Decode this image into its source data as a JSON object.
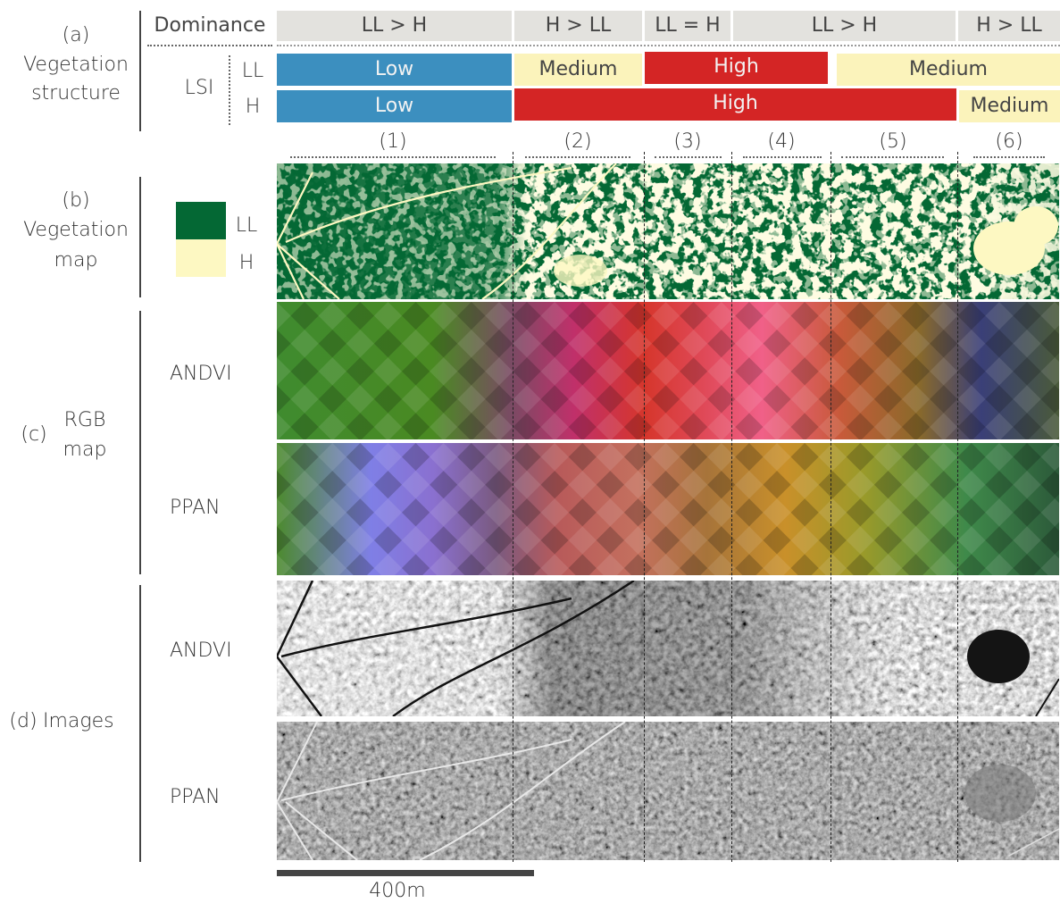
{
  "sections": {
    "a": {
      "tag": "(a)",
      "line1": "Vegetation",
      "line2": "structure"
    },
    "b": {
      "tag": "(b)",
      "line1": "Vegetation",
      "line2": "map"
    },
    "c": {
      "tag": "(c)",
      "line1": "RGB",
      "line2": "map"
    },
    "d": {
      "tag": "(d)",
      "label": "Images"
    }
  },
  "header": {
    "dominance_label": "Dominance",
    "lsi_label": "LSI",
    "ll_label": "LL",
    "h_label": "H"
  },
  "dominance": [
    "LL > H",
    "H > LL",
    "LL = H",
    "LL > H",
    "H > LL"
  ],
  "lsi_ll": [
    "Low",
    "Medium",
    "High",
    "Medium"
  ],
  "lsi_h": [
    "Low",
    "High",
    "Medium"
  ],
  "zones": [
    "(1)",
    "(2)",
    "(3)",
    "(4)",
    "(5)",
    "(6)"
  ],
  "legend": {
    "ll": "LL",
    "h": "H"
  },
  "rows": {
    "andvi": "ANDVI",
    "ppan": "PPAN"
  },
  "scale_bar": "400m",
  "colors": {
    "low": "#3c8fbf",
    "medium": "#fbf3bb",
    "high": "#d42525",
    "dominance_bg": "#e3e2de",
    "ll_green": "#046834",
    "h_cream": "#fdf8c2"
  }
}
